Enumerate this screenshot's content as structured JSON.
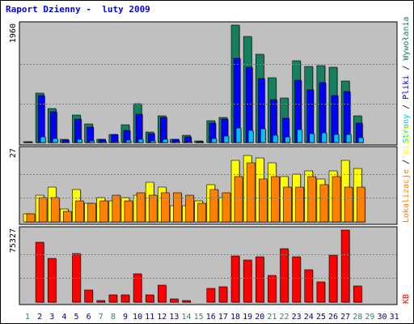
{
  "title": "Raport Dzienny -  luty 2009",
  "colors": {
    "panel_bg": "#c0c0c0",
    "hits": "#157f5f",
    "files": "#0000ff",
    "pages": "#00c0ff",
    "visits": "#ffff00",
    "sites": "#ff8000",
    "kbytes": "#ff0000",
    "title": "#0000ff",
    "weekday_label": "#00008b",
    "weekend_label": "#2e8b57"
  },
  "right_labels": {
    "hits": "Wywołania",
    "files": "Pliki",
    "pages": "Strony",
    "visits": "Wizyty",
    "sites": "Lokalizacje",
    "kbytes": "KB",
    "separator": " / "
  },
  "chart_data": {
    "type": "bar",
    "title": "Raport Dzienny -  luty 2009",
    "categories": [
      "1",
      "2",
      "3",
      "4",
      "5",
      "6",
      "7",
      "8",
      "9",
      "10",
      "11",
      "12",
      "13",
      "14",
      "15",
      "16",
      "17",
      "18",
      "19",
      "20",
      "21",
      "22",
      "23",
      "24",
      "25",
      "26",
      "27",
      "28",
      "29",
      "30",
      "31"
    ],
    "weekend_days": [
      "1",
      "7",
      "8",
      "14",
      "15",
      "21",
      "22",
      "28",
      "29"
    ],
    "panels": [
      {
        "id": "hits_panel",
        "max_label": "1960",
        "ymax": 1960,
        "series": [
          {
            "name": "Wywołania",
            "color": "#157f5f",
            "values": [
              10,
              820,
              570,
              50,
              460,
              310,
              60,
              140,
              300,
              650,
              180,
              450,
              60,
              120,
              30,
              370,
              420,
              1960,
              1770,
              1480,
              1080,
              750,
              1360,
              1270,
              1280,
              1260,
              1030,
              440,
              0,
              0,
              0
            ]
          },
          {
            "name": "Pliki",
            "color": "#0000ff",
            "values": [
              8,
              790,
              510,
              40,
              390,
              260,
              50,
              130,
              200,
              470,
              150,
              420,
              50,
              90,
              20,
              330,
              390,
              1400,
              1260,
              1070,
              710,
              410,
              1040,
              880,
              1000,
              790,
              850,
              330,
              0,
              0,
              0
            ]
          },
          {
            "name": "Strony",
            "color": "#00c0ff",
            "values": [
              3,
              100,
              70,
              6,
              60,
              30,
              10,
              20,
              40,
              50,
              30,
              60,
              10,
              20,
              5,
              70,
              110,
              250,
              200,
              230,
              120,
              100,
              210,
              150,
              160,
              140,
              140,
              80,
              0,
              0,
              0
            ]
          }
        ]
      },
      {
        "id": "visits_panel",
        "max_label": "27",
        "ymax": 27,
        "series": [
          {
            "name": "Wizyty",
            "color": "#ffff00",
            "values": [
              3,
              10,
              13,
              5,
              12,
              7,
              9,
              8,
              9,
              10,
              15,
              13,
              6,
              6,
              8,
              14,
              9,
              23,
              25,
              24,
              22,
              17,
              18,
              19,
              16,
              19,
              23,
              20,
              0,
              0,
              0
            ]
          },
          {
            "name": "Lokalizacje",
            "color": "#ff8000",
            "values": [
              3,
              9,
              9,
              4,
              8,
              7,
              8,
              10,
              8,
              11,
              10,
              11,
              11,
              10,
              7,
              12,
              11,
              17,
              22,
              16,
              17,
              13,
              13,
              17,
              14,
              17,
              13,
              13,
              0,
              0,
              0
            ]
          }
        ]
      },
      {
        "id": "kbytes_panel",
        "max_label": "75327",
        "ymax": 75327,
        "series": [
          {
            "name": "KB",
            "color": "#ff0000",
            "values": [
              0,
              63000,
              46000,
              0,
              51000,
              12500,
              2000,
              8000,
              8000,
              30000,
              7500,
              17500,
              3200,
              2000,
              0,
              14000,
              16500,
              48000,
              44000,
              47000,
              28000,
              56000,
              47000,
              34000,
              21000,
              49000,
              75327,
              17000,
              0,
              0,
              0
            ]
          }
        ]
      }
    ]
  }
}
